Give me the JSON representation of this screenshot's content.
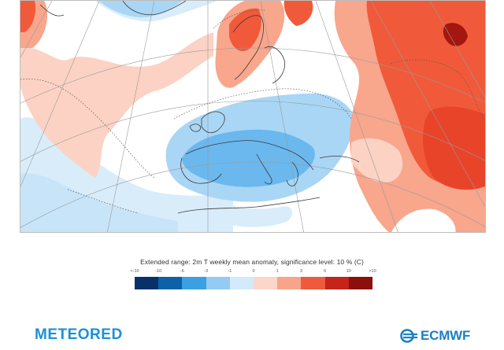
{
  "map": {
    "description_label": "Europe weekly temperature anomaly map",
    "colors": {
      "deep_red": "#d92d1c",
      "red": "#f05a3a",
      "salmon": "#f8a68c",
      "pink": "#fcd2c4",
      "white": "#ffffff",
      "pale_blue": "#d9ecfa",
      "light_blue": "#a9d6f5",
      "blue": "#6ab8ee",
      "dark_red": "#a31710"
    }
  },
  "legend": {
    "title": "Extended range: 2m T weekly mean anomaly, significance level: 10 % (C)",
    "ticks": [
      "<-10",
      "-10",
      "-6",
      "-3",
      "-1",
      "0",
      "1",
      "3",
      "6",
      "10",
      ">10"
    ],
    "colors": [
      "#08306b",
      "#0b62a8",
      "#3ca0e0",
      "#93cbf2",
      "#d2eafb",
      "#fcd6c9",
      "#f7a48a",
      "#ee5b3c",
      "#c4241a",
      "#8c0f0b"
    ]
  },
  "branding": {
    "left_logo": "METEORED",
    "right_logo": "ECMWF",
    "left_color": "#1d8fd8",
    "right_color": "#1b7fc4"
  }
}
